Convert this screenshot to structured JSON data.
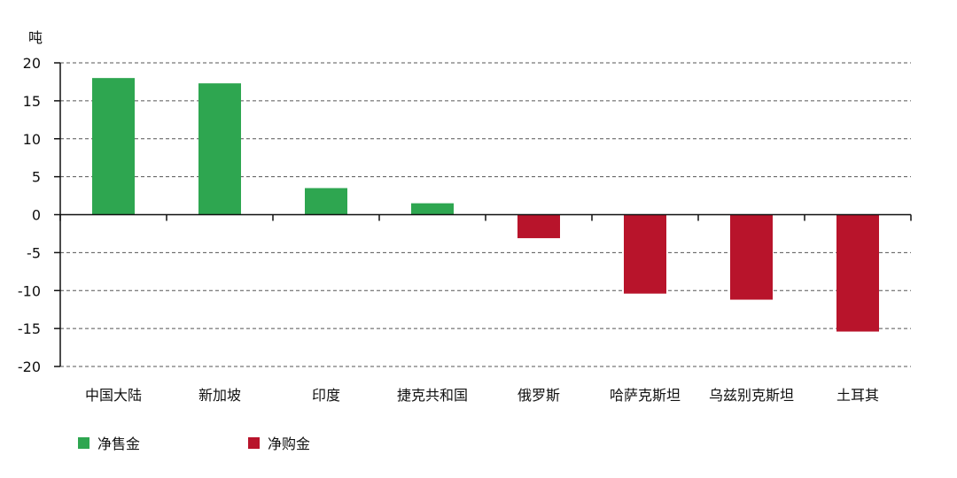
{
  "chart_data": {
    "type": "bar",
    "unit_label": "吨",
    "categories": [
      "中国大陆",
      "新加坡",
      "印度",
      "捷克共和国",
      "俄罗斯",
      "哈萨克斯坦",
      "乌兹别克斯坦",
      "土耳其"
    ],
    "values": [
      18.0,
      17.3,
      3.5,
      1.5,
      -3.1,
      -10.4,
      -11.2,
      -15.4
    ],
    "ylim": [
      -20,
      20
    ],
    "yticks": [
      20,
      15,
      10,
      5,
      0,
      -5,
      -10,
      -15,
      -20
    ],
    "grid": true,
    "legend_position": "bottom-left",
    "series": [
      {
        "name": "净售金",
        "color": "#2ea650",
        "sign": "positive"
      },
      {
        "name": "净购金",
        "color": "#b8142b",
        "sign": "negative"
      }
    ],
    "colors": {
      "positive": "#2ea650",
      "negative": "#b8142b",
      "axis": "#111111",
      "grid": "#555555"
    }
  }
}
